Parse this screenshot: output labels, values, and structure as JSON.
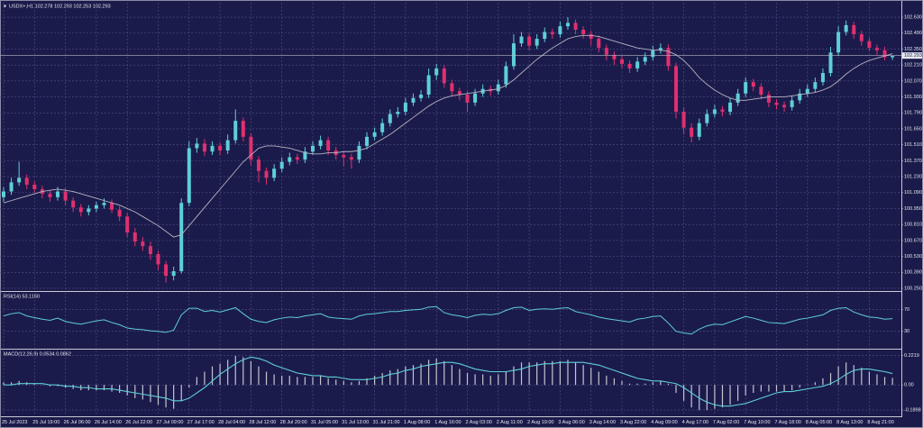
{
  "chart_data": [
    {
      "type": "candlestick",
      "title": "USDX+,H1 102.278 102.293 102.253 102.293",
      "categories": [
        "25 Jul 2023",
        null,
        null,
        null,
        "25 Jul 19:00",
        null,
        null,
        null,
        "26 Jul 06:00",
        null,
        null,
        null,
        "26 Jul 14:00",
        null,
        null,
        null,
        "26 Jul 22:00",
        null,
        null,
        null,
        "27 Jul 09:00",
        null,
        null,
        null,
        "27 Jul 17:00",
        null,
        null,
        null,
        "28 Jul 04:00",
        null,
        null,
        null,
        "28 Jul 12:00",
        null,
        null,
        null,
        "28 Jul 20:00",
        null,
        null,
        null,
        "31 Jul 05:00",
        null,
        null,
        null,
        "31 Jul 13:00",
        null,
        null,
        null,
        "31 Jul 21:00",
        null,
        null,
        null,
        "1 Aug 08:00",
        null,
        null,
        null,
        "1 Aug 16:00",
        null,
        null,
        null,
        "2 Aug 03:00",
        null,
        null,
        null,
        "2 Aug 11:00",
        null,
        null,
        null,
        "2 Aug 19:00",
        null,
        null,
        null,
        "3 Aug 06:00",
        null,
        null,
        null,
        "3 Aug 14:00",
        null,
        null,
        null,
        "3 Aug 22:00",
        null,
        null,
        null,
        "4 Aug 09:00",
        null,
        null,
        null,
        "4 Aug 17:00",
        null,
        null,
        null,
        "7 Aug 02:00",
        null,
        null,
        null,
        "7 Aug 10:00",
        null,
        null,
        null,
        "7 Aug 18:00",
        null,
        null,
        null,
        "8 Aug 05:00",
        null,
        null,
        null,
        "8 Aug 13:00",
        null,
        null,
        null,
        "8 Aug 21:00",
        null,
        null,
        null
      ],
      "open": [
        101.05,
        101.1,
        101.18,
        101.22,
        101.16,
        101.12,
        101.08,
        101.05,
        101.1,
        101.02,
        100.96,
        100.92,
        100.95,
        100.98,
        101.0,
        100.94,
        100.88,
        100.74,
        100.66,
        100.62,
        100.55,
        100.46,
        100.36,
        100.4,
        101.0,
        101.48,
        101.52,
        101.45,
        101.5,
        101.46,
        101.55,
        101.72,
        101.58,
        101.38,
        101.28,
        101.22,
        101.3,
        101.36,
        101.4,
        101.38,
        101.45,
        101.5,
        101.55,
        101.46,
        101.42,
        101.4,
        101.38,
        101.5,
        101.58,
        101.62,
        101.7,
        101.78,
        101.8,
        101.88,
        101.92,
        101.95,
        102.12,
        102.18,
        102.05,
        101.98,
        101.95,
        101.88,
        101.96,
        102.0,
        101.98,
        102.04,
        102.2,
        102.4,
        102.46,
        102.38,
        102.44,
        102.5,
        102.48,
        102.55,
        102.58,
        102.52,
        102.48,
        102.44,
        102.36,
        102.3,
        102.26,
        102.22,
        102.18,
        102.24,
        102.28,
        102.34,
        102.36,
        102.2,
        101.8,
        101.66,
        101.58,
        101.7,
        101.78,
        101.82,
        101.8,
        101.88,
        101.96,
        102.06,
        102.02,
        101.95,
        101.88,
        101.86,
        101.84,
        101.9,
        101.96,
        102.0,
        102.06,
        102.14,
        102.32,
        102.5,
        102.56,
        102.48,
        102.42,
        102.36,
        102.34,
        102.278
      ],
      "high": [
        101.14,
        101.22,
        101.36,
        101.25,
        101.19,
        101.15,
        101.11,
        101.14,
        101.13,
        101.05,
        100.99,
        100.98,
        101.01,
        101.04,
        101.03,
        100.97,
        100.91,
        100.78,
        100.7,
        100.66,
        100.58,
        100.49,
        100.44,
        101.04,
        101.54,
        101.57,
        101.56,
        101.54,
        101.53,
        101.6,
        101.82,
        101.75,
        101.61,
        101.41,
        101.31,
        101.34,
        101.4,
        101.44,
        101.43,
        101.49,
        101.54,
        101.59,
        101.58,
        101.49,
        101.45,
        101.43,
        101.54,
        101.62,
        101.66,
        101.74,
        101.82,
        101.84,
        101.92,
        101.96,
        101.99,
        102.18,
        102.22,
        102.21,
        102.08,
        102.01,
        101.98,
        102.0,
        102.04,
        102.03,
        102.08,
        102.24,
        102.48,
        102.5,
        102.49,
        102.48,
        102.54,
        102.53,
        102.59,
        102.63,
        102.61,
        102.55,
        102.51,
        102.47,
        102.39,
        102.33,
        102.29,
        102.25,
        102.28,
        102.32,
        102.38,
        102.4,
        102.39,
        102.23,
        101.84,
        101.7,
        101.74,
        101.82,
        101.86,
        101.85,
        101.92,
        102.0,
        102.1,
        102.09,
        102.05,
        101.98,
        101.91,
        101.89,
        101.94,
        102.0,
        102.04,
        102.1,
        102.18,
        102.37,
        102.55,
        102.6,
        102.59,
        102.51,
        102.45,
        102.39,
        102.37,
        102.293
      ],
      "low": [
        101.01,
        101.07,
        101.15,
        101.12,
        101.09,
        101.04,
        101.01,
        101.02,
        100.98,
        100.92,
        100.88,
        100.89,
        100.92,
        100.95,
        100.91,
        100.84,
        100.7,
        100.62,
        100.58,
        100.5,
        100.41,
        100.3,
        100.32,
        100.38,
        100.97,
        101.44,
        101.41,
        101.42,
        101.42,
        101.43,
        101.52,
        101.54,
        101.33,
        101.18,
        101.16,
        101.19,
        101.27,
        101.33,
        101.34,
        101.35,
        101.42,
        101.47,
        101.42,
        101.38,
        101.32,
        101.3,
        101.35,
        101.47,
        101.55,
        101.59,
        101.67,
        101.75,
        101.77,
        101.85,
        101.89,
        101.92,
        102.08,
        102.01,
        101.94,
        101.9,
        101.8,
        101.85,
        101.93,
        101.94,
        101.95,
        102.01,
        102.17,
        102.37,
        102.34,
        102.35,
        102.41,
        102.44,
        102.45,
        102.52,
        102.48,
        102.44,
        102.38,
        102.32,
        102.25,
        102.21,
        102.18,
        102.14,
        102.15,
        102.21,
        102.25,
        102.31,
        102.16,
        101.74,
        101.6,
        101.53,
        101.55,
        101.67,
        101.75,
        101.76,
        101.77,
        101.85,
        101.93,
        101.98,
        101.91,
        101.84,
        101.82,
        101.8,
        101.81,
        101.87,
        101.93,
        101.97,
        102.03,
        102.11,
        102.29,
        102.47,
        102.44,
        102.38,
        102.33,
        102.3,
        102.25,
        102.253
      ],
      "close": [
        101.1,
        101.18,
        101.22,
        101.16,
        101.12,
        101.08,
        101.05,
        101.1,
        101.02,
        100.96,
        100.92,
        100.95,
        100.98,
        101.0,
        100.94,
        100.88,
        100.74,
        100.66,
        100.62,
        100.55,
        100.46,
        100.36,
        100.4,
        101.0,
        101.48,
        101.52,
        101.45,
        101.5,
        101.46,
        101.55,
        101.72,
        101.58,
        101.38,
        101.28,
        101.22,
        101.3,
        101.36,
        101.4,
        101.38,
        101.45,
        101.5,
        101.55,
        101.46,
        101.42,
        101.4,
        101.38,
        101.5,
        101.58,
        101.62,
        101.7,
        101.78,
        101.8,
        101.88,
        101.92,
        101.95,
        102.12,
        102.18,
        102.05,
        101.98,
        101.95,
        101.88,
        101.96,
        102.0,
        101.98,
        102.04,
        102.2,
        102.4,
        102.46,
        102.38,
        102.44,
        102.5,
        102.48,
        102.55,
        102.58,
        102.52,
        102.48,
        102.44,
        102.36,
        102.3,
        102.26,
        102.22,
        102.18,
        102.24,
        102.28,
        102.34,
        102.36,
        102.2,
        101.8,
        101.66,
        101.58,
        101.7,
        101.78,
        101.82,
        101.8,
        101.88,
        101.96,
        102.06,
        102.02,
        101.95,
        101.88,
        101.86,
        101.84,
        101.9,
        101.96,
        102.0,
        102.06,
        102.14,
        102.32,
        102.5,
        102.56,
        102.48,
        102.42,
        102.36,
        102.34,
        102.278,
        102.293
      ],
      "up_color": "#5ecfd6",
      "down_color": "#e0306f",
      "ma": {
        "color": "#b4b4c4",
        "values": [
          101.0,
          101.02,
          101.04,
          101.06,
          101.08,
          101.1,
          101.11,
          101.12,
          101.11,
          101.1,
          101.08,
          101.06,
          101.04,
          101.02,
          101.0,
          100.98,
          100.95,
          100.92,
          100.88,
          100.84,
          100.8,
          100.75,
          100.7,
          100.72,
          100.8,
          100.88,
          100.96,
          101.04,
          101.12,
          101.2,
          101.28,
          101.36,
          101.42,
          101.48,
          101.5,
          101.5,
          101.49,
          101.48,
          101.46,
          101.44,
          101.43,
          101.43,
          101.44,
          101.44,
          101.45,
          101.45,
          101.46,
          101.48,
          101.52,
          101.56,
          101.6,
          101.65,
          101.7,
          101.75,
          101.8,
          101.85,
          101.89,
          101.92,
          101.94,
          101.95,
          101.96,
          101.97,
          101.98,
          101.99,
          102.0,
          102.03,
          102.08,
          102.14,
          102.2,
          102.26,
          102.31,
          102.36,
          102.4,
          102.44,
          102.46,
          102.47,
          102.47,
          102.46,
          102.44,
          102.42,
          102.4,
          102.38,
          102.36,
          102.35,
          102.34,
          102.34,
          102.33,
          102.3,
          102.25,
          102.18,
          102.1,
          102.04,
          101.99,
          101.95,
          101.92,
          101.9,
          101.9,
          101.91,
          101.92,
          101.93,
          101.93,
          101.93,
          101.94,
          101.95,
          101.96,
          101.97,
          101.99,
          102.02,
          102.07,
          102.13,
          102.18,
          102.22,
          102.25,
          102.27,
          102.29,
          102.31
        ]
      },
      "current_price": 102.293,
      "ylim": [
        100.234,
        102.757
      ],
      "yticks": [
        {
          "value": 102.63,
          "label": "102.630"
        },
        {
          "value": 102.49,
          "label": "102.490"
        },
        {
          "value": 102.35,
          "label": "102.350"
        },
        {
          "value": 102.21,
          "label": "102.210"
        },
        {
          "value": 102.07,
          "label": "102.070"
        },
        {
          "value": 101.93,
          "label": "101.930"
        },
        {
          "value": 101.79,
          "label": "101.790"
        },
        {
          "value": 101.65,
          "label": "101.650"
        },
        {
          "value": 101.51,
          "label": "101.510"
        },
        {
          "value": 101.37,
          "label": "101.370"
        },
        {
          "value": 101.23,
          "label": "101.230"
        },
        {
          "value": 101.09,
          "label": "101.090"
        },
        {
          "value": 100.95,
          "label": "100.950"
        },
        {
          "value": 100.81,
          "label": "100.810"
        },
        {
          "value": 100.67,
          "label": "100.670"
        },
        {
          "value": 100.53,
          "label": "100.530"
        },
        {
          "value": 100.39,
          "label": "100.390"
        },
        {
          "value": 100.25,
          "label": "100.250"
        }
      ],
      "grid": true
    },
    {
      "type": "line",
      "title": "RSI(14) 53.1160",
      "color": "#5ecfd6",
      "values": [
        58,
        62,
        64,
        58,
        55,
        52,
        50,
        54,
        48,
        45,
        43,
        46,
        49,
        51,
        46,
        42,
        36,
        34,
        33,
        31,
        30,
        28,
        32,
        60,
        72,
        72,
        66,
        68,
        65,
        69,
        73,
        62,
        52,
        48,
        46,
        51,
        54,
        56,
        55,
        58,
        60,
        62,
        56,
        54,
        53,
        52,
        58,
        61,
        62,
        64,
        66,
        66,
        68,
        69,
        70,
        74,
        75,
        64,
        60,
        58,
        55,
        59,
        61,
        60,
        62,
        68,
        73,
        74,
        68,
        70,
        71,
        70,
        72,
        73,
        66,
        63,
        60,
        56,
        53,
        51,
        49,
        47,
        52,
        54,
        57,
        58,
        45,
        30,
        27,
        25,
        34,
        40,
        43,
        42,
        47,
        52,
        57,
        54,
        50,
        46,
        45,
        44,
        48,
        52,
        54,
        57,
        60,
        68,
        72,
        73,
        65,
        60,
        56,
        55,
        52,
        53.116
      ],
      "ylim": [
        0,
        100
      ],
      "yticks": [
        30,
        70
      ],
      "grid": true
    },
    {
      "type": "macd",
      "title": "MACD(12,26,9) 0.0534 0.0862",
      "histogram": {
        "color": "#c4c4d0",
        "values": [
          0.02,
          0.02,
          0.03,
          0.02,
          0.01,
          0.0,
          -0.01,
          -0.01,
          -0.02,
          -0.03,
          -0.04,
          -0.04,
          -0.04,
          -0.04,
          -0.05,
          -0.06,
          -0.08,
          -0.1,
          -0.11,
          -0.13,
          -0.15,
          -0.17,
          -0.18,
          -0.12,
          -0.02,
          0.06,
          0.1,
          0.14,
          0.16,
          0.19,
          0.22,
          0.21,
          0.18,
          0.14,
          0.1,
          0.08,
          0.07,
          0.07,
          0.06,
          0.06,
          0.06,
          0.07,
          0.05,
          0.04,
          0.03,
          0.02,
          0.03,
          0.05,
          0.07,
          0.09,
          0.11,
          0.12,
          0.14,
          0.15,
          0.16,
          0.19,
          0.2,
          0.18,
          0.15,
          0.12,
          0.09,
          0.08,
          0.08,
          0.07,
          0.08,
          0.1,
          0.14,
          0.17,
          0.17,
          0.17,
          0.18,
          0.18,
          0.18,
          0.19,
          0.17,
          0.15,
          0.13,
          0.1,
          0.07,
          0.05,
          0.03,
          0.01,
          0.01,
          0.01,
          0.02,
          0.03,
          0.01,
          -0.06,
          -0.12,
          -0.17,
          -0.19,
          -0.19,
          -0.18,
          -0.17,
          -0.15,
          -0.12,
          -0.08,
          -0.06,
          -0.05,
          -0.05,
          -0.05,
          -0.05,
          -0.04,
          -0.02,
          0.0,
          0.02,
          0.05,
          0.09,
          0.14,
          0.17,
          0.15,
          0.13,
          0.1,
          0.08,
          0.06,
          0.0534
        ]
      },
      "signal": {
        "color": "#5ecfd6",
        "values": [
          0.0,
          0.0,
          0.01,
          0.01,
          0.01,
          0.01,
          0.0,
          0.0,
          -0.01,
          -0.01,
          -0.02,
          -0.02,
          -0.03,
          -0.03,
          -0.03,
          -0.04,
          -0.05,
          -0.06,
          -0.07,
          -0.08,
          -0.09,
          -0.1,
          -0.12,
          -0.12,
          -0.1,
          -0.06,
          -0.02,
          0.03,
          0.08,
          0.12,
          0.16,
          0.19,
          0.21,
          0.2,
          0.18,
          0.15,
          0.13,
          0.11,
          0.09,
          0.08,
          0.07,
          0.07,
          0.06,
          0.06,
          0.05,
          0.04,
          0.04,
          0.04,
          0.05,
          0.06,
          0.08,
          0.09,
          0.11,
          0.12,
          0.14,
          0.15,
          0.16,
          0.17,
          0.17,
          0.16,
          0.14,
          0.12,
          0.11,
          0.1,
          0.1,
          0.1,
          0.11,
          0.12,
          0.14,
          0.15,
          0.16,
          0.16,
          0.17,
          0.17,
          0.17,
          0.17,
          0.16,
          0.15,
          0.13,
          0.11,
          0.09,
          0.07,
          0.05,
          0.04,
          0.03,
          0.03,
          0.02,
          0.01,
          -0.02,
          -0.06,
          -0.1,
          -0.13,
          -0.15,
          -0.16,
          -0.16,
          -0.15,
          -0.14,
          -0.12,
          -0.1,
          -0.08,
          -0.06,
          -0.05,
          -0.05,
          -0.04,
          -0.03,
          -0.02,
          -0.01,
          0.01,
          0.04,
          0.08,
          0.11,
          0.12,
          0.12,
          0.11,
          0.1,
          0.0862
        ]
      },
      "ylim": [
        -0.23,
        0.26
      ],
      "yticks": [
        0.2219,
        {
          "value": 0,
          "label": "0.00"
        },
        -0.1898
      ],
      "grid": true
    }
  ]
}
